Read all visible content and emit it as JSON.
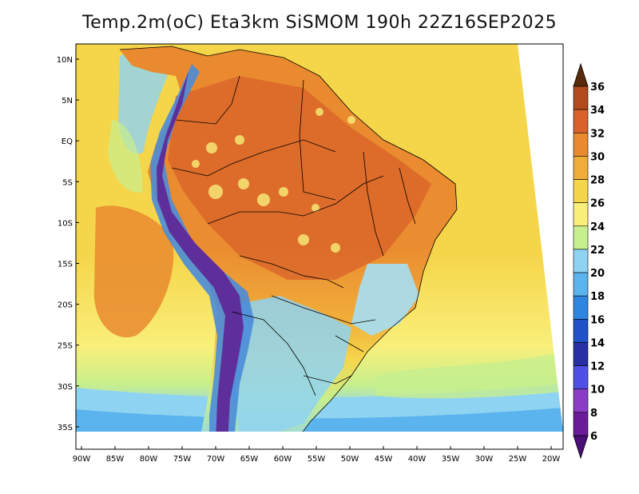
{
  "title": "Temp.2m(oC) Eta3km SiSMOM 190h 22Z16SEP2025",
  "map": {
    "lat_ticks": [
      "10N",
      "5N",
      "EQ",
      "5S",
      "10S",
      "15S",
      "20S",
      "25S",
      "30S",
      "35S"
    ],
    "lon_ticks": [
      "90W",
      "85W",
      "80W",
      "75W",
      "70W",
      "65W",
      "60W",
      "55W",
      "50W",
      "45W",
      "40W",
      "35W",
      "30W",
      "25W",
      "20W"
    ],
    "lat_range": [
      -38,
      11
    ],
    "lon_range": [
      -91,
      -20
    ],
    "colors": {
      "ocean_warm": "#f5d64b",
      "ocean_mid": "#f9ef7a",
      "ocean_cool": "#c7ef8d",
      "ocean_cold": "#8fd3f2",
      "land_hot": "#e98a2f",
      "land_very_hot": "#d8622a",
      "land_warm": "#f1ad3a",
      "andes": "#5e2f9b",
      "andes_edge": "#4a8cd9",
      "south_cool": "#a5dff5"
    }
  },
  "colorbar": {
    "labels": [
      "36",
      "34",
      "32",
      "30",
      "28",
      "26",
      "24",
      "22",
      "20",
      "18",
      "16",
      "14",
      "12",
      "10",
      "8",
      "6"
    ],
    "colors": [
      "#7a3a12",
      "#b24a1b",
      "#d8622a",
      "#e98a2f",
      "#f1ad3a",
      "#f5d64b",
      "#f9ef7a",
      "#c7ef8d",
      "#8fd3f2",
      "#5bb4ee",
      "#2f86e0",
      "#1f52c8",
      "#2930a6",
      "#5050e6",
      "#8a3cc6",
      "#6a1b9a"
    ],
    "top_arrow_color": "#5a2a0c",
    "bottom_arrow_color": "#4a0f78"
  }
}
